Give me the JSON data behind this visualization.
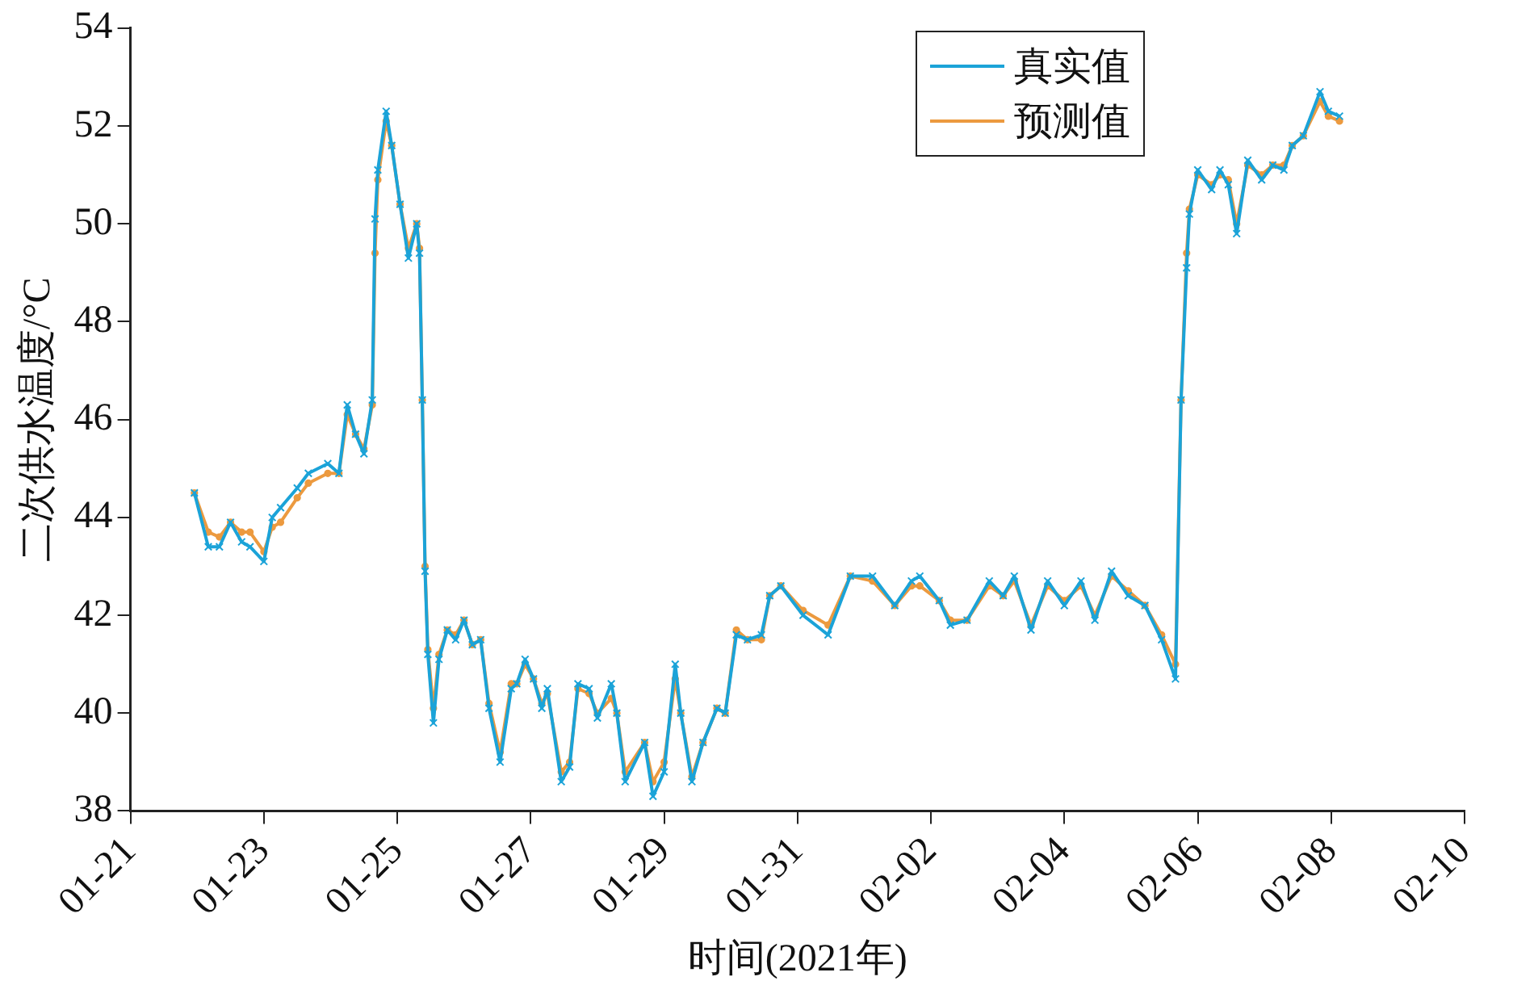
{
  "chart_data": {
    "type": "line",
    "xlabel": "时间(2021年)",
    "ylabel": "二次供水温度/°C",
    "xlim": [
      "2021-01-21",
      "2021-02-10"
    ],
    "xticks": [
      {
        "value": "2021-01-21",
        "label": "01-21"
      },
      {
        "value": "2021-01-23",
        "label": "01-23"
      },
      {
        "value": "2021-01-25",
        "label": "01-25"
      },
      {
        "value": "2021-01-27",
        "label": "01-27"
      },
      {
        "value": "2021-01-29",
        "label": "01-29"
      },
      {
        "value": "2021-01-31",
        "label": "01-31"
      },
      {
        "value": "2021-02-02",
        "label": "02-02"
      },
      {
        "value": "2021-02-04",
        "label": "02-04"
      },
      {
        "value": "2021-02-06",
        "label": "02-06"
      },
      {
        "value": "2021-02-08",
        "label": "02-08"
      },
      {
        "value": "2021-02-10",
        "label": "02-10"
      }
    ],
    "ylim": [
      38,
      54
    ],
    "yticks": [
      38,
      40,
      42,
      44,
      46,
      48,
      50,
      52,
      54
    ],
    "grid": false,
    "legend": "top right",
    "line_style": "solid",
    "x": [
      "2021-01-21T23:00",
      "2021-01-22T04:00",
      "2021-01-22T08:00",
      "2021-01-22T12:00",
      "2021-01-22T16:00",
      "2021-01-22T19:00",
      "2021-01-23T00:00",
      "2021-01-23T03:00",
      "2021-01-23T06:00",
      "2021-01-23T12:00",
      "2021-01-23T16:00",
      "2021-01-23T23:00",
      "2021-01-24T03:00",
      "2021-01-24T06:00",
      "2021-01-24T09:00",
      "2021-01-24T12:00",
      "2021-01-24T15:00",
      "2021-01-24T16:00",
      "2021-01-24T17:00",
      "2021-01-24T20:00",
      "2021-01-24T22:00",
      "2021-01-25T01:00",
      "2021-01-25T04:00",
      "2021-01-25T07:00",
      "2021-01-25T08:00",
      "2021-01-25T09:00",
      "2021-01-25T10:00",
      "2021-01-25T11:00",
      "2021-01-25T13:00",
      "2021-01-25T15:00",
      "2021-01-25T18:00",
      "2021-01-25T21:00",
      "2021-01-26T00:00",
      "2021-01-26T03:00",
      "2021-01-26T06:00",
      "2021-01-26T09:00",
      "2021-01-26T13:00",
      "2021-01-26T17:00",
      "2021-01-26T19:00",
      "2021-01-26T22:00",
      "2021-01-27T01:00",
      "2021-01-27T04:00",
      "2021-01-27T06:00",
      "2021-01-27T11:00",
      "2021-01-27T14:00",
      "2021-01-27T17:00",
      "2021-01-27T21:00",
      "2021-01-28T00:00",
      "2021-01-28T05:00",
      "2021-01-28T07:00",
      "2021-01-28T10:00",
      "2021-01-28T17:00",
      "2021-01-28T20:00",
      "2021-01-29T00:00",
      "2021-01-29T04:00",
      "2021-01-29T06:00",
      "2021-01-29T10:00",
      "2021-01-29T14:00",
      "2021-01-29T19:00",
      "2021-01-29T22:00",
      "2021-01-30T02:00",
      "2021-01-30T06:00",
      "2021-01-30T11:00",
      "2021-01-30T14:00",
      "2021-01-30T18:00",
      "2021-01-31T02:00",
      "2021-01-31T11:00",
      "2021-01-31T19:00",
      "2021-02-01T03:00",
      "2021-02-01T11:00",
      "2021-02-01T17:00",
      "2021-02-01T20:00",
      "2021-02-02T03:00",
      "2021-02-02T07:00",
      "2021-02-02T13:00",
      "2021-02-02T21:00",
      "2021-02-03T02:00",
      "2021-02-03T06:00",
      "2021-02-03T12:00",
      "2021-02-03T18:00",
      "2021-02-04T00:00",
      "2021-02-04T06:00",
      "2021-02-04T11:00",
      "2021-02-04T17:00",
      "2021-02-04T23:00",
      "2021-02-05T05:00",
      "2021-02-05T11:00",
      "2021-02-05T16:00",
      "2021-02-05T18:00",
      "2021-02-05T20:00",
      "2021-02-05T21:00",
      "2021-02-06T00:00",
      "2021-02-06T05:00",
      "2021-02-06T08:00",
      "2021-02-06T11:00",
      "2021-02-06T14:00",
      "2021-02-06T18:00",
      "2021-02-06T23:00",
      "2021-02-07T03:00",
      "2021-02-07T07:00",
      "2021-02-07T10:00",
      "2021-02-07T14:00",
      "2021-02-07T20:00",
      "2021-02-07T23:00",
      "2021-02-08T03:00"
    ],
    "series": [
      {
        "name": "真实值",
        "color": "#1ba3d8",
        "marker": "cross",
        "values": [
          44.5,
          43.4,
          43.4,
          43.9,
          43.5,
          43.4,
          43.1,
          44.0,
          44.2,
          44.6,
          44.9,
          45.1,
          44.9,
          46.3,
          45.7,
          45.3,
          46.4,
          50.1,
          51.1,
          52.3,
          51.6,
          50.4,
          49.3,
          50.0,
          49.4,
          46.4,
          42.9,
          41.2,
          39.8,
          41.1,
          41.7,
          41.5,
          41.9,
          41.4,
          41.5,
          40.1,
          39.0,
          40.5,
          40.6,
          41.1,
          40.7,
          40.1,
          40.5,
          38.6,
          38.9,
          40.6,
          40.5,
          39.9,
          40.6,
          40.0,
          38.6,
          39.4,
          38.3,
          38.8,
          41.0,
          40.0,
          38.6,
          39.4,
          40.1,
          40.0,
          41.6,
          41.5,
          41.6,
          42.4,
          42.6,
          42.0,
          41.6,
          42.8,
          42.8,
          42.2,
          42.7,
          42.8,
          42.3,
          41.8,
          41.9,
          42.7,
          42.4,
          42.8,
          41.7,
          42.7,
          42.2,
          42.7,
          41.9,
          42.9,
          42.4,
          42.2,
          41.5,
          40.7,
          46.4,
          49.1,
          50.2,
          51.1,
          50.7,
          51.1,
          50.8,
          49.8,
          51.3,
          50.9,
          51.2,
          51.1,
          51.6,
          51.8,
          52.7,
          52.3,
          52.2
        ]
      },
      {
        "name": "预测值",
        "color": "#ec9a3f",
        "marker": "circle",
        "values": [
          44.5,
          43.7,
          43.6,
          43.9,
          43.7,
          43.7,
          43.3,
          43.8,
          43.9,
          44.4,
          44.7,
          44.9,
          44.9,
          46.1,
          45.7,
          45.4,
          46.3,
          49.4,
          50.9,
          52.1,
          51.6,
          50.4,
          49.5,
          50.0,
          49.5,
          46.4,
          43.0,
          41.3,
          40.1,
          41.2,
          41.7,
          41.6,
          41.9,
          41.4,
          41.5,
          40.2,
          39.2,
          40.6,
          40.6,
          41.0,
          40.7,
          40.2,
          40.4,
          38.8,
          39.0,
          40.5,
          40.4,
          40.0,
          40.3,
          40.0,
          38.8,
          39.4,
          38.6,
          39.0,
          40.7,
          40.0,
          38.7,
          39.4,
          40.1,
          40.0,
          41.7,
          41.5,
          41.5,
          42.4,
          42.6,
          42.1,
          41.8,
          42.8,
          42.7,
          42.2,
          42.6,
          42.6,
          42.3,
          41.9,
          41.9,
          42.6,
          42.4,
          42.7,
          41.8,
          42.6,
          42.3,
          42.6,
          42.0,
          42.8,
          42.5,
          42.2,
          41.6,
          41.0,
          46.4,
          49.4,
          50.3,
          51.0,
          50.8,
          51.0,
          50.9,
          50.0,
          51.2,
          51.0,
          51.2,
          51.2,
          51.6,
          51.8,
          52.5,
          52.2,
          52.1
        ]
      }
    ]
  }
}
